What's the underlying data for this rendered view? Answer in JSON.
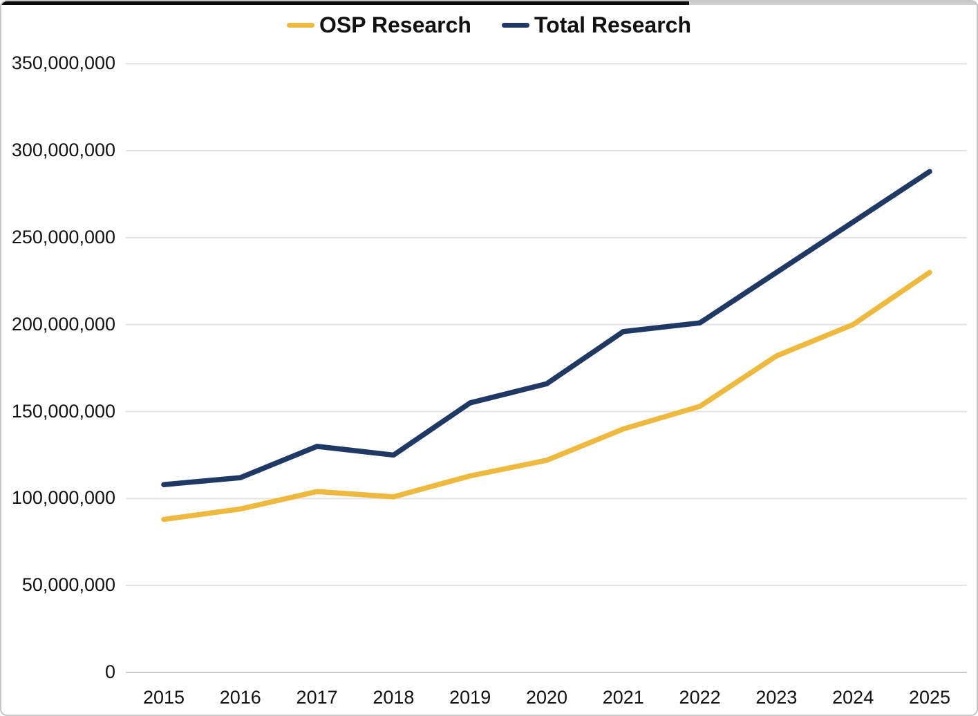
{
  "chart_data": {
    "type": "line",
    "title": "",
    "xlabel": "",
    "ylabel": "",
    "categories": [
      "2015",
      "2016",
      "2017",
      "2018",
      "2019",
      "2020",
      "2021",
      "2022",
      "2023",
      "2024",
      "2025"
    ],
    "series": [
      {
        "name": "OSP Research",
        "color": "#EDB93F",
        "values": [
          88000000,
          94000000,
          104000000,
          101000000,
          113000000,
          122000000,
          140000000,
          153000000,
          182000000,
          200000000,
          230000000
        ]
      },
      {
        "name": "Total Research",
        "color": "#1F3864",
        "values": [
          108000000,
          112000000,
          130000000,
          125000000,
          155000000,
          166000000,
          196000000,
          201000000,
          230000000,
          259000000,
          288000000
        ]
      }
    ],
    "ylim": [
      0,
      350000000
    ],
    "y_tick_step": 50000000,
    "y_tick_labels": [
      "0",
      "50,000,000",
      "100,000,000",
      "150,000,000",
      "200,000,000",
      "250,000,000",
      "300,000,000",
      "350,000,000"
    ],
    "grid": true,
    "legend_position": "top",
    "colors": {
      "gridline": "#E3E3E3",
      "zero_axis_line": "#C9C9C9",
      "text": "#121212"
    }
  }
}
